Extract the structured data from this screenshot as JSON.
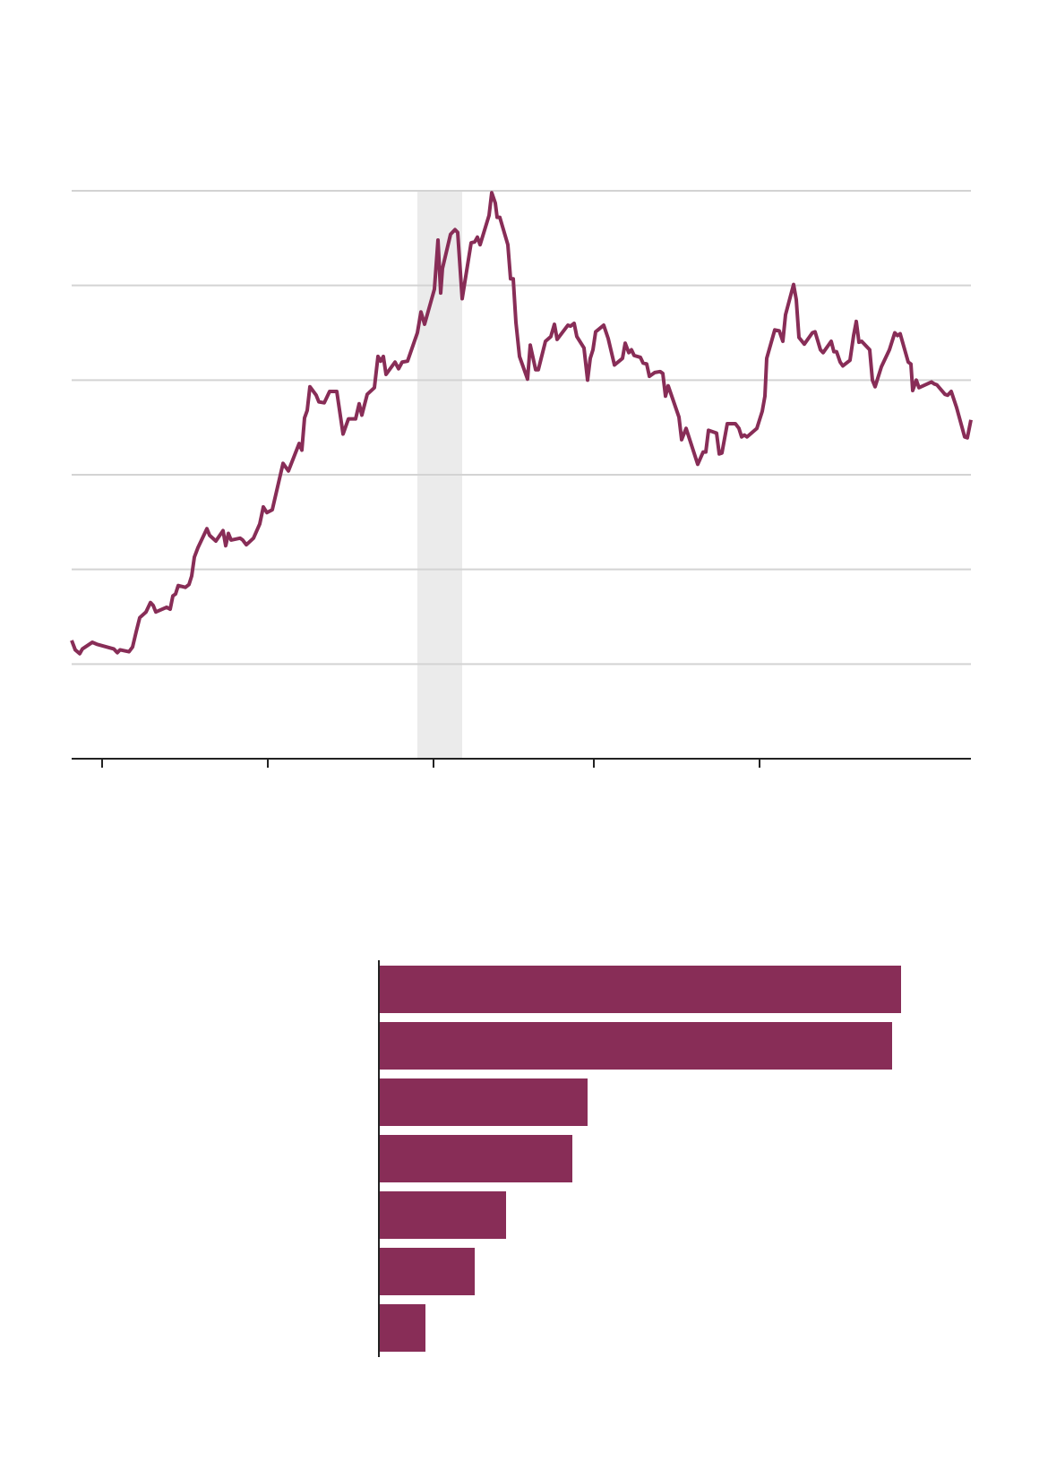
{
  "chart_data": [
    {
      "type": "line",
      "x": [
        0,
        0.4,
        0.9,
        1.2,
        2.3,
        2.8,
        4.7,
        5.1,
        5.4,
        6.4,
        6.8,
        7.2,
        7.6,
        8.3,
        8.8,
        9.1,
        9.4,
        10.6,
        11,
        11.3,
        11.6,
        11.9,
        12.7,
        13.1,
        13.4,
        13.7,
        14.1,
        15.1,
        15.4,
        16.1,
        16.9,
        17.2,
        17.5,
        17.8,
        18.8,
        19.1,
        19.5,
        20.3,
        21,
        21.4,
        21.8,
        22.4,
        23.6,
        24.2,
        25.4,
        25.7,
        26,
        26.3,
        26.6,
        27.3,
        27.6,
        28.2,
        28.8,
        29.6,
        30.3,
        30.9,
        31.7,
        32.1,
        32.4,
        33,
        33.8,
        34.2,
        34.5,
        34.8,
        35.1,
        36.1,
        36.5,
        36.9,
        37.5,
        38.6,
        39,
        39.4,
        40.5,
        40.9,
        41.2,
        41.4,
        42.3,
        42.8,
        43.1,
        43.6,
        44.6,
        45,
        45.3,
        45.6,
        46.6,
        46.9,
        47.3,
        47.5,
        47.8,
        48.7,
        49,
        49.3,
        49.6,
        50,
        50.9,
        51.2,
        51.8,
        52.1,
        52.9,
        53.5,
        53.9,
        54.2,
        55.4,
        55.7,
        56.1,
        56.4,
        57.2,
        57.6,
        57.9,
        58.2,
        58.5,
        59.4,
        59.9,
        60.6,
        61.5,
        61.8,
        62.2,
        62.5,
        62.8,
        63.5,
        63.8,
        64.2,
        64.5,
        65.1,
        65.7,
        66,
        66.3,
        66.6,
        67.8,
        68.1,
        68.6,
        69.9,
        70.5,
        70.8,
        71.1,
        72,
        72.3,
        72.6,
        73.2,
        74.1,
        74.5,
        74.8,
        75.1,
        75.4,
        76.5,
        76.8,
        77.1,
        77.4,
        77.6,
        78.5,
        79,
        79.4,
        79.7,
        80.6,
        80.9,
        81.2,
        81.8,
        82.7,
        83,
        83.6,
        83.9,
        84.5,
        84.8,
        85.1,
        85.4,
        85.8,
        86.1,
        86.9,
        87.3,
        87.6,
        87.9,
        88.2,
        89.1,
        89.4,
        89.7,
        90.4,
        91.3,
        91.9,
        92.2,
        92.5,
        93.4,
        93.7,
        93.9,
        94.3,
        94.6,
        96,
        96.3,
        96.6,
        97.5,
        97.8,
        98.2,
        98.8,
        99.7,
        100,
        100.4
      ],
      "series": [
        {
          "color": "#882d57",
          "values": [
            1.25,
            1.15,
            1.11,
            1.16,
            1.23,
            1.21,
            1.16,
            1.12,
            1.15,
            1.13,
            1.18,
            1.34,
            1.49,
            1.55,
            1.65,
            1.62,
            1.55,
            1.6,
            1.58,
            1.72,
            1.74,
            1.83,
            1.81,
            1.84,
            1.93,
            2.13,
            2.23,
            2.43,
            2.36,
            2.3,
            2.41,
            2.25,
            2.38,
            2.31,
            2.33,
            2.31,
            2.26,
            2.33,
            2.48,
            2.66,
            2.6,
            2.63,
            3.12,
            3.04,
            3.33,
            3.26,
            3.6,
            3.68,
            3.93,
            3.84,
            3.77,
            3.76,
            3.88,
            3.88,
            3.43,
            3.59,
            3.59,
            3.75,
            3.63,
            3.85,
            3.92,
            4.25,
            4.2,
            4.25,
            4.06,
            4.19,
            4.12,
            4.19,
            4.2,
            4.5,
            4.72,
            4.59,
            4.96,
            5.48,
            4.92,
            5.18,
            5.54,
            5.59,
            5.56,
            4.86,
            5.45,
            5.46,
            5.51,
            5.43,
            5.74,
            5.98,
            5.87,
            5.72,
            5.72,
            5.43,
            5.07,
            5.07,
            4.61,
            4.25,
            4.01,
            4.37,
            4.11,
            4.11,
            4.41,
            4.46,
            4.59,
            4.43,
            4.58,
            4.57,
            4.6,
            4.46,
            4.34,
            4.0,
            4.23,
            4.32,
            4.51,
            4.58,
            4.44,
            4.16,
            4.23,
            4.39,
            4.29,
            4.32,
            4.26,
            4.24,
            4.18,
            4.17,
            4.04,
            4.08,
            4.09,
            4.07,
            3.83,
            3.94,
            3.61,
            3.37,
            3.49,
            3.11,
            3.24,
            3.24,
            3.47,
            3.44,
            3.22,
            3.23,
            3.54,
            3.54,
            3.49,
            3.4,
            3.42,
            3.4,
            3.49,
            3.58,
            3.67,
            3.83,
            4.23,
            4.53,
            4.52,
            4.41,
            4.69,
            5.01,
            4.85,
            4.45,
            4.38,
            4.5,
            4.51,
            4.32,
            4.29,
            4.37,
            4.41,
            4.3,
            4.3,
            4.19,
            4.15,
            4.21,
            4.47,
            4.62,
            4.4,
            4.41,
            4.32,
            4.0,
            3.93,
            4.14,
            4.32,
            4.5,
            4.47,
            4.49,
            4.19,
            4.17,
            3.89,
            4.0,
            3.92,
            3.98,
            3.96,
            3.95,
            3.85,
            3.84,
            3.88,
            3.71,
            3.4,
            3.39,
            3.58
          ]
        }
      ],
      "xlim": [
        0,
        100.4
      ],
      "xticks": [
        3.4,
        21.9,
        40.4,
        58.3,
        76.8
      ],
      "ylim": [
        0,
        6
      ],
      "yticks": [
        1,
        2,
        3,
        4,
        5,
        6
      ],
      "grid": true,
      "shaded_span": [
        38.6,
        43.6
      ],
      "shade_color": "#ebebeb"
    },
    {
      "type": "hbar",
      "categories": [
        null,
        null,
        null,
        null,
        null,
        null,
        null
      ],
      "values": [
        583,
        573,
        233,
        216,
        142,
        107,
        52
      ],
      "color": "#882d57",
      "xlim": [
        0,
        660
      ]
    }
  ]
}
